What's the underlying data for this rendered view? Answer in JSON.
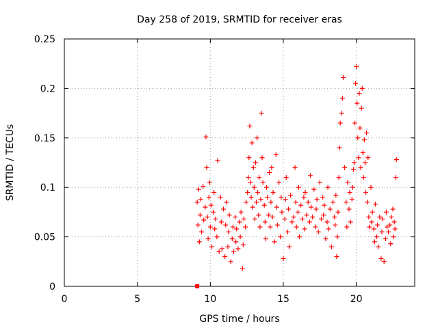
{
  "chart_data": {
    "type": "scatter",
    "title": "Day 258 of 2019, SRMTID for receiver eras",
    "xlabel": "GPS time / hours",
    "ylabel": "SRMTID / TECUs",
    "xlim": [
      0,
      24
    ],
    "ylim": [
      0,
      0.25
    ],
    "xticks": [
      0,
      5,
      10,
      15,
      20
    ],
    "xtick_labels": [
      "0",
      "5",
      "10",
      "15",
      "20"
    ],
    "yticks": [
      0,
      0.05,
      0.1,
      0.15,
      0.2,
      0.25
    ],
    "ytick_labels": [
      "0",
      "0.05",
      "0.1",
      "0.15",
      "0.2",
      "0.25"
    ],
    "grid": true,
    "marker": "+",
    "color": "#ff0000",
    "series": [
      {
        "name": "eras",
        "x": [
          9.1,
          9.15,
          9.2,
          9.25,
          9.3,
          9.35,
          9.4,
          9.5,
          9.55,
          9.65,
          9.7,
          9.75,
          9.8,
          9.85,
          9.9,
          9.95,
          10.0,
          10.05,
          10.1,
          10.2,
          10.25,
          10.3,
          10.35,
          10.45,
          10.5,
          10.6,
          10.7,
          10.75,
          10.8,
          10.9,
          11.0,
          11.05,
          11.1,
          11.2,
          11.25,
          11.3,
          11.4,
          11.5,
          11.55,
          11.6,
          11.7,
          11.75,
          11.8,
          11.9,
          12.0,
          12.05,
          12.1,
          12.2,
          12.25,
          12.3,
          12.4,
          12.45,
          12.55,
          12.6,
          12.65,
          12.7,
          12.75,
          12.8,
          12.85,
          12.9,
          12.95,
          13.0,
          13.05,
          13.1,
          13.15,
          13.2,
          13.25,
          13.3,
          13.35,
          13.4,
          13.45,
          13.5,
          13.55,
          13.6,
          13.7,
          13.75,
          13.8,
          13.85,
          13.9,
          14.0,
          14.05,
          14.1,
          14.15,
          14.2,
          14.25,
          14.3,
          14.4,
          14.5,
          14.55,
          14.6,
          14.7,
          14.8,
          14.85,
          14.9,
          15.0,
          15.1,
          15.15,
          15.2,
          15.3,
          15.35,
          15.4,
          15.5,
          15.6,
          15.7,
          15.8,
          15.85,
          15.9,
          16.0,
          16.05,
          16.1,
          16.2,
          16.3,
          16.4,
          16.45,
          16.5,
          16.6,
          16.7,
          16.8,
          16.85,
          16.9,
          17.0,
          17.1,
          17.2,
          17.25,
          17.3,
          17.4,
          17.5,
          17.6,
          17.7,
          17.75,
          17.8,
          17.9,
          18.0,
          18.05,
          18.1,
          18.2,
          18.3,
          18.4,
          18.5,
          18.55,
          18.6,
          18.65,
          18.7,
          18.75,
          18.8,
          18.85,
          18.9,
          19.0,
          19.05,
          19.1,
          19.2,
          19.3,
          19.35,
          19.4,
          19.5,
          19.55,
          19.6,
          19.7,
          19.75,
          19.8,
          19.85,
          19.9,
          19.95,
          20.0,
          20.05,
          20.1,
          20.15,
          20.2,
          20.25,
          20.3,
          20.35,
          20.4,
          20.45,
          20.5,
          20.55,
          20.6,
          20.65,
          20.7,
          20.75,
          20.8,
          20.85,
          20.9,
          21.0,
          21.05,
          21.1,
          21.2,
          21.25,
          21.3,
          21.4,
          21.45,
          21.5,
          21.6,
          21.7,
          21.75,
          21.8,
          21.9,
          22.0,
          22.05,
          22.1,
          22.2,
          22.3,
          22.35,
          22.4,
          22.5,
          22.55,
          22.6,
          22.65,
          22.7,
          22.75
        ],
        "y": [
          0.085,
          0.062,
          0.098,
          0.045,
          0.072,
          0.088,
          0.055,
          0.101,
          0.067,
          0.08,
          0.151,
          0.12,
          0.07,
          0.048,
          0.09,
          0.105,
          0.06,
          0.082,
          0.04,
          0.075,
          0.095,
          0.058,
          0.068,
          0.05,
          0.127,
          0.035,
          0.09,
          0.065,
          0.038,
          0.078,
          0.03,
          0.062,
          0.085,
          0.04,
          0.055,
          0.072,
          0.025,
          0.048,
          0.06,
          0.035,
          0.07,
          0.045,
          0.058,
          0.038,
          0.065,
          0.05,
          0.075,
          0.018,
          0.042,
          0.068,
          0.06,
          0.085,
          0.095,
          0.11,
          0.13,
          0.162,
          0.105,
          0.09,
          0.145,
          0.08,
          0.12,
          0.1,
          0.068,
          0.125,
          0.085,
          0.15,
          0.095,
          0.072,
          0.11,
          0.06,
          0.088,
          0.175,
          0.13,
          0.105,
          0.082,
          0.065,
          0.048,
          0.1,
          0.09,
          0.072,
          0.115,
          0.06,
          0.085,
          0.12,
          0.07,
          0.095,
          0.045,
          0.133,
          0.08,
          0.062,
          0.105,
          0.05,
          0.09,
          0.075,
          0.028,
          0.068,
          0.088,
          0.11,
          0.055,
          0.078,
          0.04,
          0.092,
          0.065,
          0.07,
          0.12,
          0.085,
          0.06,
          0.075,
          0.1,
          0.05,
          0.082,
          0.068,
          0.09,
          0.058,
          0.095,
          0.072,
          0.085,
          0.065,
          0.112,
          0.08,
          0.07,
          0.098,
          0.06,
          0.078,
          0.088,
          0.055,
          0.105,
          0.068,
          0.09,
          0.072,
          0.082,
          0.048,
          0.065,
          0.1,
          0.058,
          0.078,
          0.04,
          0.085,
          0.07,
          0.062,
          0.092,
          0.03,
          0.05,
          0.075,
          0.11,
          0.14,
          0.165,
          0.175,
          0.19,
          0.211,
          0.12,
          0.085,
          0.06,
          0.105,
          0.078,
          0.095,
          0.065,
          0.088,
          0.1,
          0.118,
          0.125,
          0.165,
          0.205,
          0.222,
          0.185,
          0.15,
          0.13,
          0.195,
          0.16,
          0.12,
          0.18,
          0.2,
          0.135,
          0.11,
          0.148,
          0.125,
          0.095,
          0.155,
          0.085,
          0.13,
          0.07,
          0.06,
          0.1,
          0.065,
          0.075,
          0.058,
          0.045,
          0.083,
          0.05,
          0.062,
          0.04,
          0.07,
          0.028,
          0.055,
          0.068,
          0.025,
          0.048,
          0.075,
          0.06,
          0.055,
          0.062,
          0.043,
          0.07,
          0.078,
          0.05,
          0.065,
          0.058,
          0.11,
          0.128
        ]
      }
    ],
    "extra_points": [
      {
        "x": 9.1,
        "y": 0.0
      }
    ]
  }
}
